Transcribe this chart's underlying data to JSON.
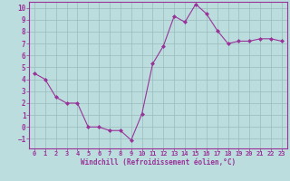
{
  "x": [
    0,
    1,
    2,
    3,
    4,
    5,
    6,
    7,
    8,
    9,
    10,
    11,
    12,
    13,
    14,
    15,
    16,
    17,
    18,
    19,
    20,
    21,
    22,
    23
  ],
  "y": [
    4.5,
    4.0,
    2.5,
    2.0,
    2.0,
    0.0,
    0.0,
    -0.3,
    -0.3,
    -1.1,
    1.1,
    5.3,
    6.8,
    9.3,
    8.8,
    10.3,
    9.5,
    8.1,
    7.0,
    7.2,
    7.2,
    7.4,
    7.4,
    7.2
  ],
  "line_color": "#993399",
  "marker": "D",
  "marker_size": 2,
  "bg_color": "#bbdddd",
  "grid_color": "#99bbbb",
  "xlabel": "Windchill (Refroidissement éolien,°C)",
  "xlabel_color": "#993399",
  "tick_color": "#993399",
  "axis_color": "#993399",
  "ylim": [
    -1.8,
    10.5
  ],
  "xlim": [
    -0.5,
    23.5
  ],
  "yticks": [
    -1,
    0,
    1,
    2,
    3,
    4,
    5,
    6,
    7,
    8,
    9,
    10
  ],
  "xticks": [
    0,
    1,
    2,
    3,
    4,
    5,
    6,
    7,
    8,
    9,
    10,
    11,
    12,
    13,
    14,
    15,
    16,
    17,
    18,
    19,
    20,
    21,
    22,
    23
  ],
  "tick_fontsize": 5.0,
  "xlabel_fontsize": 5.5
}
